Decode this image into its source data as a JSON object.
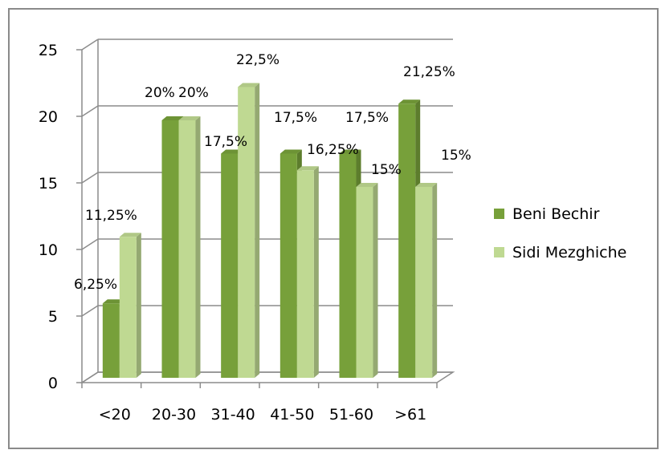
{
  "chart_data": {
    "type": "bar",
    "style": "3d-clustered-column",
    "categories": [
      "<20",
      "20-30",
      "31-40",
      "41-50",
      "51-60",
      ">61"
    ],
    "series": [
      {
        "name": "Beni Bechir",
        "values": [
          6.25,
          20,
          17.5,
          17.5,
          17.5,
          21.25
        ],
        "labels": [
          "6,25%",
          "20%",
          "17,5%",
          "17,5%",
          "17,5%",
          "21,25%"
        ],
        "color": "#77A03A"
      },
      {
        "name": "Sidi Mezghiche",
        "values": [
          11.25,
          20,
          22.5,
          16.25,
          15,
          15
        ],
        "labels": [
          "11,25%",
          "20%",
          "22,5%",
          "16,25%",
          "15%",
          "15%"
        ],
        "color": "#BFD992"
      }
    ],
    "y_ticks": [
      "0",
      "5",
      "10",
      "15",
      "20",
      "25"
    ],
    "ylim": [
      0,
      25
    ],
    "grid": true,
    "legend_position": "right",
    "title": "",
    "xlabel": "",
    "ylabel": ""
  }
}
